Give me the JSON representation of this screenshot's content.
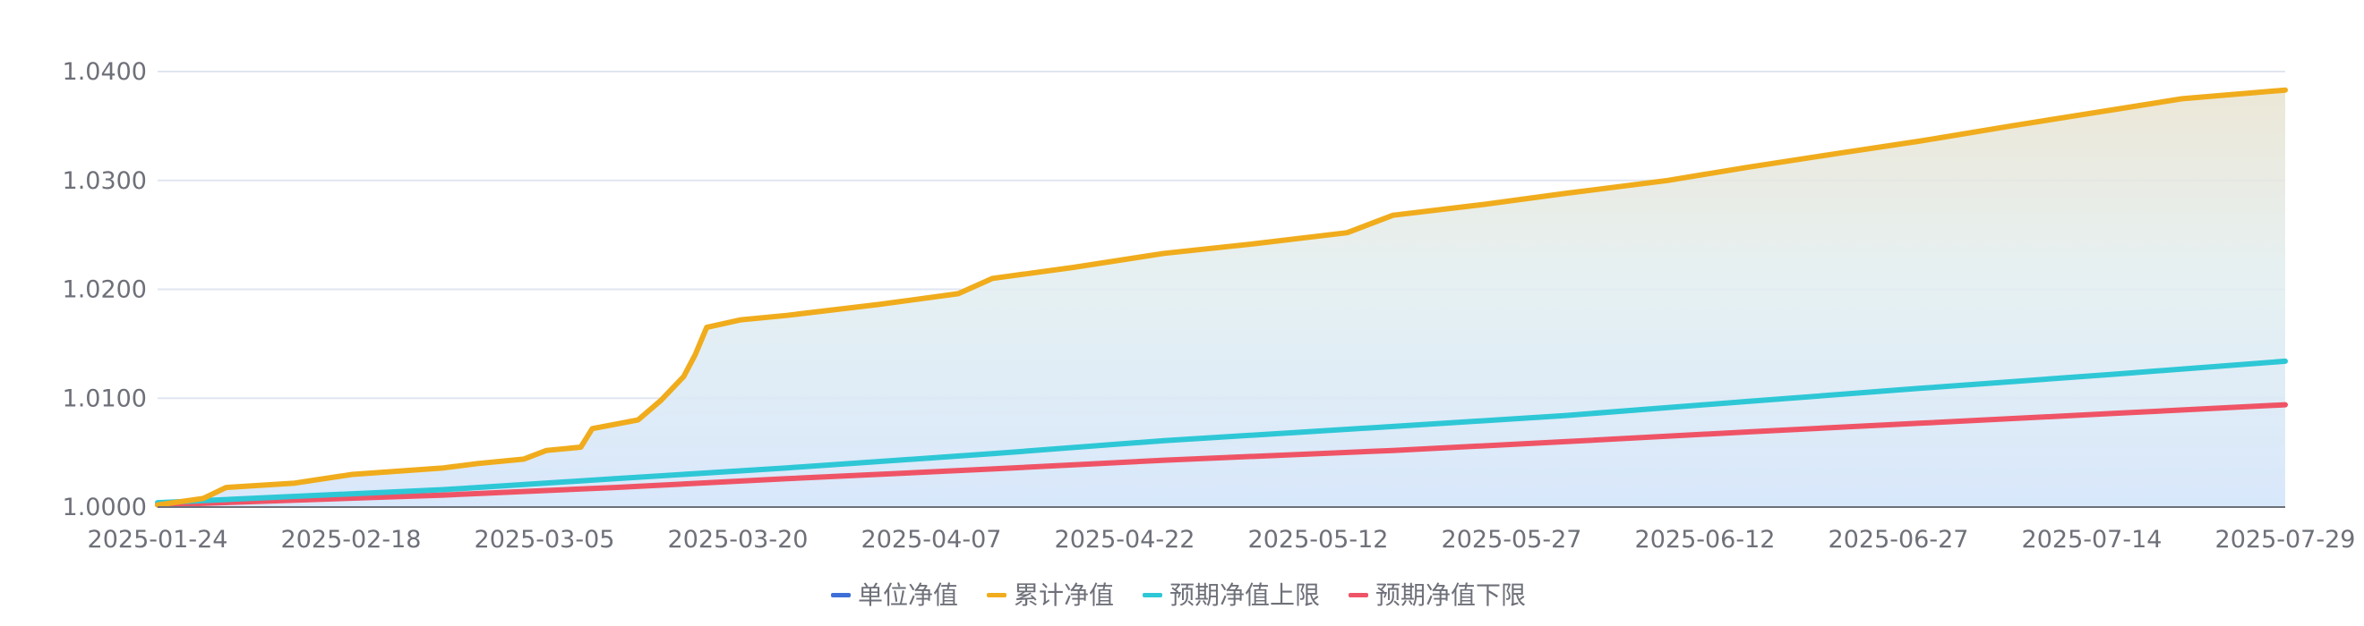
{
  "chart_data": {
    "type": "area",
    "title": "",
    "xlabel": "",
    "ylabel": "",
    "ylim": [
      1.0,
      1.04
    ],
    "y_ticks": [
      "1.0000",
      "1.0100",
      "1.0200",
      "1.0300",
      "1.0400"
    ],
    "x_ticks": [
      "2025-01-24",
      "2025-02-18",
      "2025-03-05",
      "2025-03-20",
      "2025-04-07",
      "2025-04-22",
      "2025-05-12",
      "2025-05-27",
      "2025-06-12",
      "2025-06-27",
      "2025-07-14",
      "2025-07-29"
    ],
    "x_start": "2025-01-24",
    "x_end": "2025-07-29",
    "grid": true,
    "legend_position": "bottom-center",
    "series": [
      {
        "name": "单位净值",
        "color": "#3e6fd8",
        "points": []
      },
      {
        "name": "累计净值",
        "color": "#f0ac1c",
        "points": [
          [
            "2025-01-24",
            1.0002
          ],
          [
            "2025-01-28",
            1.0008
          ],
          [
            "2025-01-30",
            1.0018
          ],
          [
            "2025-02-05",
            1.0022
          ],
          [
            "2025-02-10",
            1.003
          ],
          [
            "2025-02-18",
            1.0036
          ],
          [
            "2025-02-21",
            1.004
          ],
          [
            "2025-02-25",
            1.0044
          ],
          [
            "2025-02-27",
            1.0052
          ],
          [
            "2025-03-02",
            1.0055
          ],
          [
            "2025-03-03",
            1.0072
          ],
          [
            "2025-03-07",
            1.008
          ],
          [
            "2025-03-09",
            1.0098
          ],
          [
            "2025-03-11",
            1.012
          ],
          [
            "2025-03-12",
            1.014
          ],
          [
            "2025-03-13",
            1.0165
          ],
          [
            "2025-03-16",
            1.0172
          ],
          [
            "2025-03-20",
            1.0176
          ],
          [
            "2025-03-28",
            1.0186
          ],
          [
            "2025-04-04",
            1.0196
          ],
          [
            "2025-04-07",
            1.021
          ],
          [
            "2025-04-14",
            1.022
          ],
          [
            "2025-04-22",
            1.0233
          ],
          [
            "2025-04-30",
            1.0242
          ],
          [
            "2025-05-08",
            1.0252
          ],
          [
            "2025-05-12",
            1.0268
          ],
          [
            "2025-05-20",
            1.0278
          ],
          [
            "2025-05-27",
            1.0288
          ],
          [
            "2025-06-05",
            1.03
          ],
          [
            "2025-06-12",
            1.0312
          ],
          [
            "2025-06-20",
            1.0325
          ],
          [
            "2025-06-27",
            1.0336
          ],
          [
            "2025-07-05",
            1.035
          ],
          [
            "2025-07-14",
            1.0365
          ],
          [
            "2025-07-20",
            1.0375
          ],
          [
            "2025-07-29",
            1.0383
          ]
        ]
      },
      {
        "name": "预期净值上限",
        "color": "#2ec7d6",
        "points": [
          [
            "2025-01-24",
            1.0004
          ],
          [
            "2025-02-18",
            1.0016
          ],
          [
            "2025-03-05",
            1.0026
          ],
          [
            "2025-03-20",
            1.0036
          ],
          [
            "2025-04-07",
            1.0049
          ],
          [
            "2025-04-22",
            1.0061
          ],
          [
            "2025-05-12",
            1.0074
          ],
          [
            "2025-05-27",
            1.0084
          ],
          [
            "2025-06-12",
            1.0097
          ],
          [
            "2025-06-27",
            1.0109
          ],
          [
            "2025-07-14",
            1.0122
          ],
          [
            "2025-07-29",
            1.0134
          ]
        ]
      },
      {
        "name": "预期净值下限",
        "color": "#ef5466",
        "points": [
          [
            "2025-01-24",
            1.0002
          ],
          [
            "2025-02-18",
            1.0011
          ],
          [
            "2025-03-05",
            1.0018
          ],
          [
            "2025-03-20",
            1.0026
          ],
          [
            "2025-04-07",
            1.0035
          ],
          [
            "2025-04-22",
            1.0043
          ],
          [
            "2025-05-12",
            1.0052
          ],
          [
            "2025-05-27",
            1.006
          ],
          [
            "2025-06-12",
            1.0069
          ],
          [
            "2025-06-27",
            1.0077
          ],
          [
            "2025-07-14",
            1.0086
          ],
          [
            "2025-07-29",
            1.0094
          ]
        ]
      }
    ]
  }
}
